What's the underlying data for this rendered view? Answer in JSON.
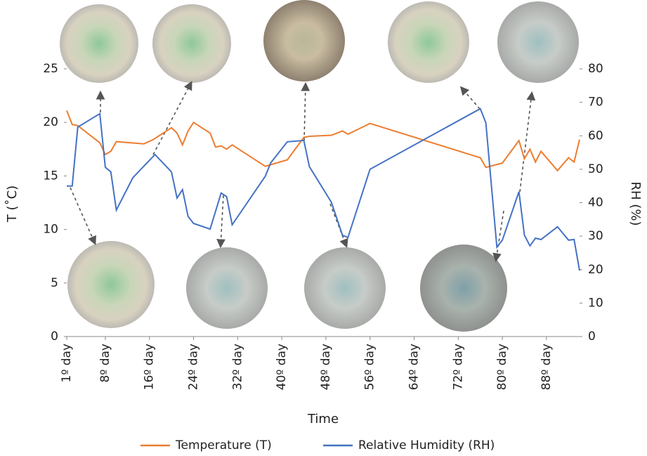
{
  "chart_data": {
    "type": "line",
    "x_label": "Time",
    "y_label": "T (˚C)",
    "y2_label": "RH (%)",
    "xlim": [
      1,
      94
    ],
    "xticks": [
      {
        "value": 1,
        "label": "1º day"
      },
      {
        "value": 8,
        "label": "8º day"
      },
      {
        "value": 16,
        "label": "16º day"
      },
      {
        "value": 24,
        "label": "24º day"
      },
      {
        "value": 32,
        "label": "32º day"
      },
      {
        "value": 40,
        "label": "40º day"
      },
      {
        "value": 48,
        "label": "48º day"
      },
      {
        "value": 56,
        "label": "56º day"
      },
      {
        "value": 64,
        "label": "64º day"
      },
      {
        "value": 72,
        "label": "72º day"
      },
      {
        "value": 80,
        "label": "80º day"
      },
      {
        "value": 88,
        "label": "88º day"
      }
    ],
    "ylim": [
      0,
      25
    ],
    "yticks": [
      0,
      5,
      10,
      15,
      20,
      25
    ],
    "y2lim": [
      0,
      80
    ],
    "y2ticks": [
      0,
      10,
      20,
      30,
      40,
      50,
      60,
      70,
      80
    ],
    "legend": "bottom",
    "series": [
      {
        "name": "Temperature (T)",
        "color": "#ed7d31",
        "x": [
          1,
          2,
          3,
          7,
          8,
          9,
          10,
          15,
          16.7,
          20,
          21,
          22,
          23,
          24,
          27,
          28,
          29,
          30,
          31,
          37,
          41,
          44,
          45,
          49,
          51,
          52,
          56,
          76,
          77,
          80,
          83,
          84,
          85,
          86,
          87,
          90,
          92,
          93,
          94
        ],
        "values": [
          21.1,
          19.8,
          19.7,
          18.1,
          17.0,
          17.3,
          18.2,
          18.0,
          18.4,
          19.5,
          19.0,
          17.9,
          19.2,
          20.0,
          19.0,
          17.7,
          17.8,
          17.5,
          17.9,
          15.9,
          16.5,
          18.6,
          18.7,
          18.8,
          19.2,
          18.9,
          19.9,
          16.7,
          15.8,
          16.2,
          18.3,
          16.6,
          17.5,
          16.3,
          17.3,
          15.5,
          16.7,
          16.3,
          18.4
        ]
      },
      {
        "name": "Relative Humidity (RH)",
        "color": "#4472c4",
        "axis": "y2",
        "x": [
          1,
          2,
          3,
          7,
          8,
          9,
          10,
          13,
          17,
          20,
          21,
          22,
          23,
          24,
          27,
          29,
          30,
          31,
          37,
          38,
          41,
          44,
          45,
          49,
          51,
          52,
          56,
          76,
          77,
          79,
          80,
          83,
          84,
          85,
          86,
          87,
          90,
          92,
          93,
          94
        ],
        "values": [
          45,
          45,
          62.6,
          66.6,
          50.6,
          49.2,
          37.8,
          47.5,
          54.4,
          49.2,
          41.4,
          43.9,
          35.9,
          33.8,
          32.1,
          42.9,
          41.8,
          33.4,
          47.9,
          51.9,
          58.2,
          58.6,
          50.8,
          40.1,
          30.3,
          29.6,
          50,
          68.1,
          63.9,
          26.7,
          28.8,
          43.3,
          30.3,
          27.1,
          29.4,
          29,
          32.8,
          28.8,
          29,
          19.7
        ]
      }
    ]
  }
}
